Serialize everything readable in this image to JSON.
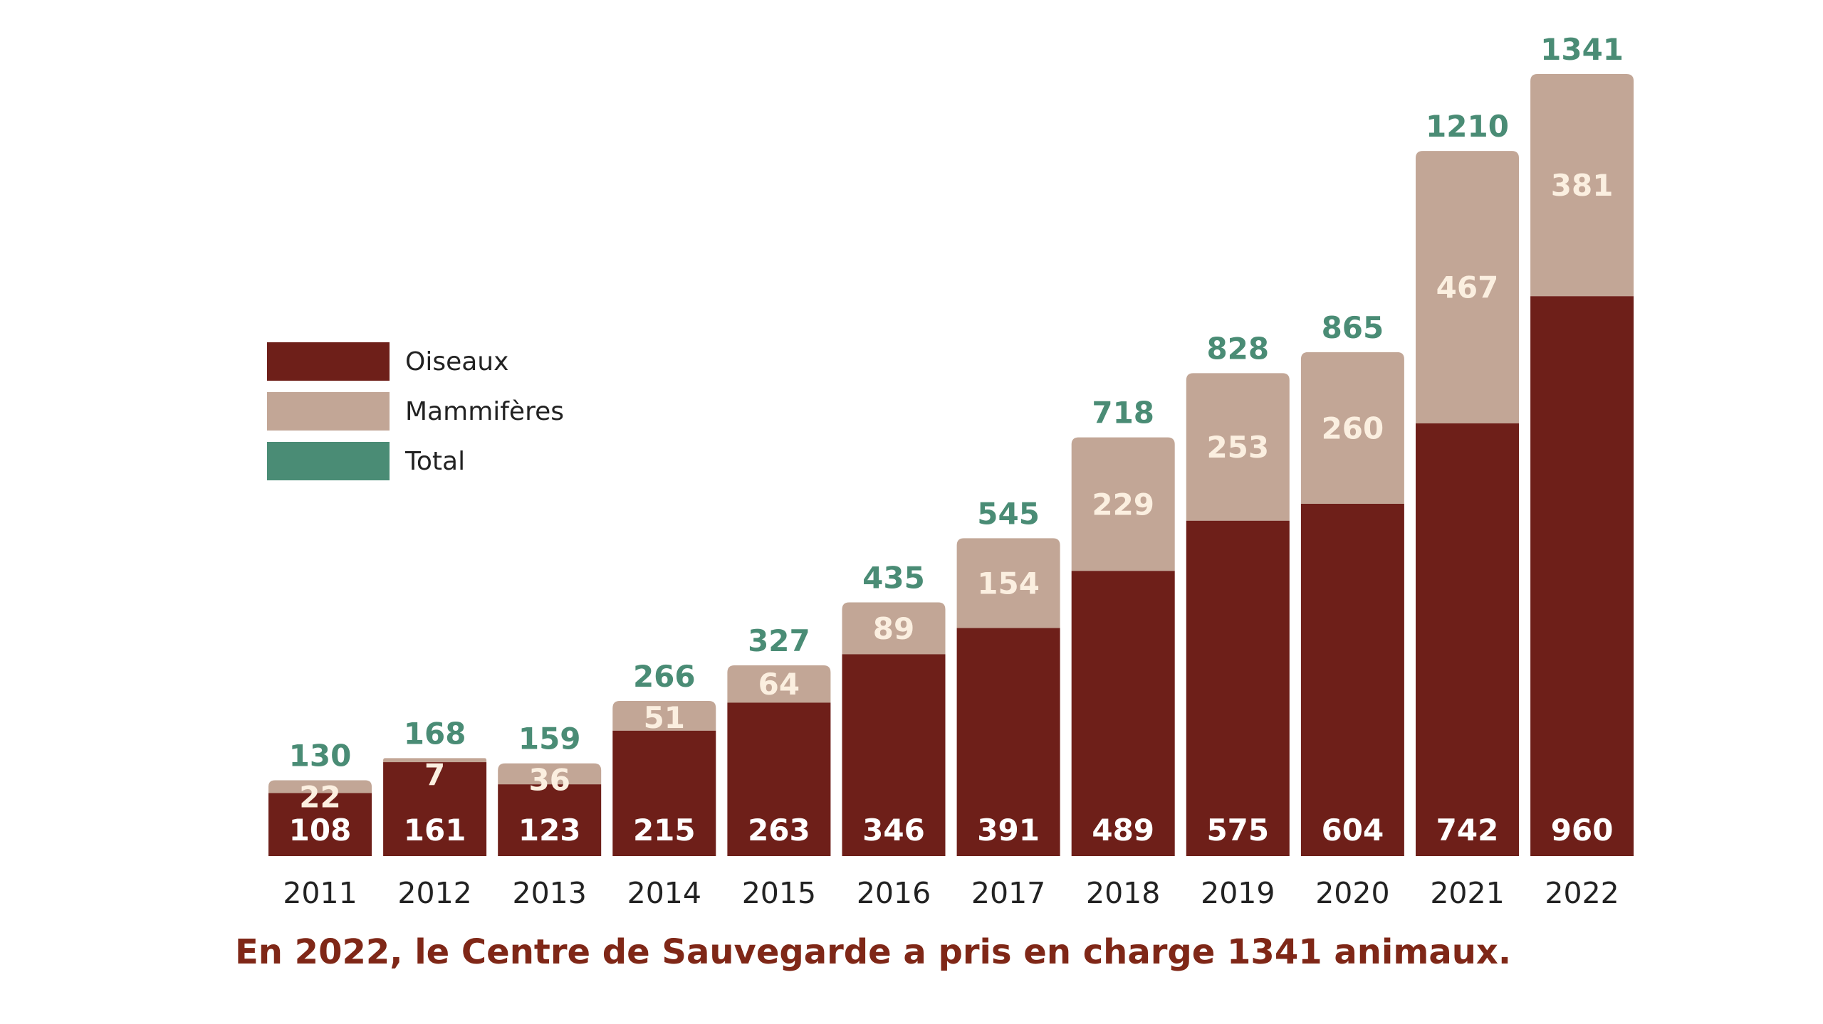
{
  "chart_data": {
    "type": "bar",
    "stacked": true,
    "categories": [
      "2011",
      "2012",
      "2013",
      "2014",
      "2015",
      "2016",
      "2017",
      "2018",
      "2019",
      "2020",
      "2021",
      "2022"
    ],
    "series": [
      {
        "name": "Oiseaux",
        "color": "#6e1f19",
        "values": [
          108,
          161,
          123,
          215,
          263,
          346,
          391,
          489,
          575,
          604,
          742,
          960
        ]
      },
      {
        "name": "Mammifères",
        "color": "#c2a696",
        "values": [
          22,
          7,
          36,
          51,
          64,
          89,
          154,
          229,
          253,
          260,
          467,
          381
        ]
      }
    ],
    "totals": {
      "name": "Total",
      "color": "#4a8c75",
      "values": [
        130,
        168,
        159,
        266,
        327,
        435,
        545,
        718,
        828,
        865,
        1210,
        1341
      ]
    },
    "legend_position": "left",
    "ylim": [
      0,
      1341
    ],
    "grid": false,
    "xlabel": "",
    "ylabel": ""
  },
  "colors": {
    "segment_label_oiseaux": "#ffffff",
    "segment_label_mammiferes": "#fbefe0",
    "year_label": "#222222",
    "caption": "#7f2717"
  },
  "caption": "En 2022, le Centre de Sauvegarde a pris en charge 1341 animaux."
}
